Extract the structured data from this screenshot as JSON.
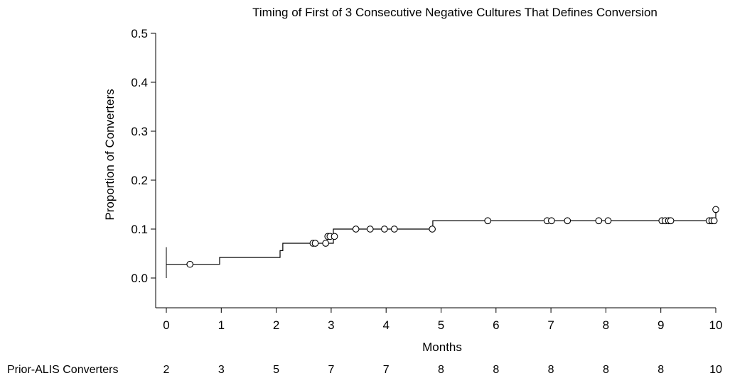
{
  "chart_data": {
    "type": "line",
    "subtype": "kaplan-meier step curve with censor marks",
    "title": "Timing of First of 3 Consecutive Negative Cultures That Defines Conversion",
    "xlabel": "Months",
    "ylabel": "Proportion of Converters",
    "xlim": [
      0,
      10
    ],
    "ylim": [
      0.0,
      0.5
    ],
    "x_ticks": [
      "0",
      "1",
      "2",
      "3",
      "4",
      "5",
      "6",
      "7",
      "8",
      "9",
      "10"
    ],
    "y_ticks": [
      "0.5",
      "0.4",
      "0.3",
      "0.2",
      "0.1",
      "0.0"
    ],
    "grid": false,
    "legend": "none",
    "line_color": "#000000",
    "series": [
      {
        "step": {
          "x": [
            0,
            0.97,
            2.07,
            2.12,
            3.04,
            4.85,
            10.0
          ],
          "y": [
            0.028,
            0.042,
            0.056,
            0.071,
            0.1,
            0.117,
            0.14
          ]
        },
        "censored": {
          "x": [
            0.43,
            2.67,
            2.71,
            2.9,
            2.94,
            2.98,
            3.06,
            3.45,
            3.71,
            3.97,
            4.15,
            4.84,
            5.85,
            6.93,
            7.01,
            7.3,
            7.87,
            8.04,
            9.02,
            9.08,
            9.14,
            9.18,
            9.88,
            9.93,
            9.97,
            10.0
          ],
          "y": [
            0.028,
            0.071,
            0.071,
            0.071,
            0.085,
            0.085,
            0.085,
            0.1,
            0.1,
            0.1,
            0.1,
            0.1,
            0.117,
            0.117,
            0.117,
            0.117,
            0.117,
            0.117,
            0.117,
            0.117,
            0.117,
            0.117,
            0.117,
            0.117,
            0.117,
            0.14
          ]
        },
        "ci_bar": {
          "x": 0,
          "y_low": 0.0,
          "y_high": 0.063
        }
      }
    ],
    "risk_table": {
      "label": "Prior-ALIS Converters",
      "values": [
        "2",
        "3",
        "5",
        "7",
        "7",
        "8",
        "8",
        "8",
        "8",
        "8",
        "10"
      ]
    }
  }
}
